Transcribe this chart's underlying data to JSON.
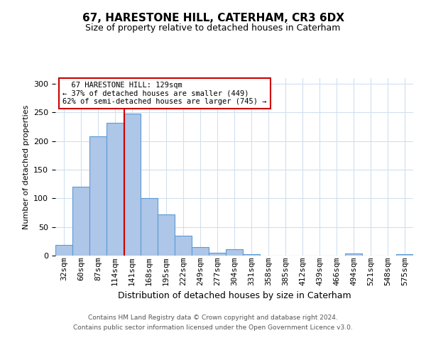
{
  "title1": "67, HARESTONE HILL, CATERHAM, CR3 6DX",
  "title2": "Size of property relative to detached houses in Caterham",
  "xlabel": "Distribution of detached houses by size in Caterham",
  "ylabel": "Number of detached properties",
  "footer1": "Contains HM Land Registry data © Crown copyright and database right 2024.",
  "footer2": "Contains public sector information licensed under the Open Government Licence v3.0.",
  "annotation_line1": "  67 HARESTONE HILL: 129sqm  ",
  "annotation_line2": "← 37% of detached houses are smaller (449)",
  "annotation_line3": "62% of semi-detached houses are larger (745) →",
  "bar_labels": [
    "32sqm",
    "60sqm",
    "87sqm",
    "114sqm",
    "141sqm",
    "168sqm",
    "195sqm",
    "222sqm",
    "249sqm",
    "277sqm",
    "304sqm",
    "331sqm",
    "358sqm",
    "385sqm",
    "412sqm",
    "439sqm",
    "466sqm",
    "494sqm",
    "521sqm",
    "548sqm",
    "575sqm"
  ],
  "bar_heights": [
    18,
    120,
    208,
    232,
    248,
    100,
    72,
    35,
    15,
    5,
    11,
    3,
    0,
    0,
    0,
    0,
    0,
    4,
    0,
    0,
    3
  ],
  "bar_color": "#aec6e8",
  "bar_edgecolor": "#5b9bd5",
  "vline_color": "#cc0000",
  "vline_x": 3.56,
  "annotation_box_facecolor": "#ffffff",
  "annotation_box_edgecolor": "#cc0000",
  "ylim": [
    0,
    310
  ],
  "yticks": [
    0,
    50,
    100,
    150,
    200,
    250,
    300
  ],
  "background_color": "#ffffff",
  "grid_color": "#d0e0ee",
  "title1_fontsize": 11,
  "title2_fontsize": 9,
  "ylabel_fontsize": 8,
  "xlabel_fontsize": 9,
  "tick_fontsize": 8,
  "footer_fontsize": 6.5
}
